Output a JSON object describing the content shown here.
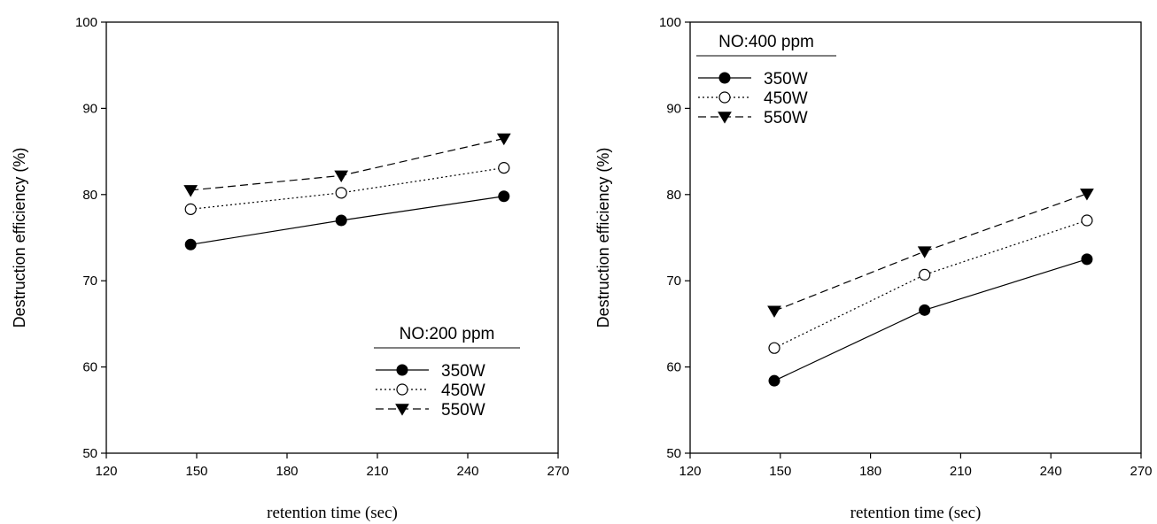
{
  "chart_data": [
    {
      "type": "line",
      "x": [
        148,
        198,
        252
      ],
      "xlabel": "retention time (sec)",
      "ylabel": "Destruction efficiency (%)",
      "xlim": [
        120,
        270
      ],
      "ylim": [
        50,
        100
      ],
      "xticks": [
        "120",
        "150",
        "180",
        "210",
        "240",
        "270"
      ],
      "yticks": [
        "50",
        "60",
        "70",
        "80",
        "90",
        "100"
      ],
      "grid": false,
      "legend_title": "NO:200 ppm",
      "legend_position": "bottom-right",
      "series": [
        {
          "name": "350W",
          "values": [
            74.2,
            77.0,
            79.8
          ],
          "marker": "filled-circle",
          "line": "solid"
        },
        {
          "name": "450W",
          "values": [
            78.3,
            80.2,
            83.1
          ],
          "marker": "open-circle",
          "line": "dotted"
        },
        {
          "name": "550W",
          "values": [
            80.5,
            82.2,
            86.5
          ],
          "marker": "filled-triangle-down",
          "line": "dashed"
        }
      ]
    },
    {
      "type": "line",
      "x": [
        148,
        198,
        252
      ],
      "xlabel": "retention time (sec)",
      "ylabel": "Destruction efficiency (%)",
      "xlim": [
        120,
        270
      ],
      "ylim": [
        50,
        100
      ],
      "xticks": [
        "120",
        "150",
        "180",
        "210",
        "240",
        "270"
      ],
      "yticks": [
        "50",
        "60",
        "70",
        "80",
        "90",
        "100"
      ],
      "grid": false,
      "legend_title": "NO:400 ppm",
      "legend_position": "top-left",
      "series": [
        {
          "name": "350W",
          "values": [
            58.4,
            66.6,
            72.5
          ],
          "marker": "filled-circle",
          "line": "solid"
        },
        {
          "name": "450W",
          "values": [
            62.2,
            70.7,
            77.0
          ],
          "marker": "open-circle",
          "line": "dotted"
        },
        {
          "name": "550W",
          "values": [
            66.5,
            73.4,
            80.1
          ],
          "marker": "filled-triangle-down",
          "line": "dashed"
        }
      ]
    }
  ]
}
